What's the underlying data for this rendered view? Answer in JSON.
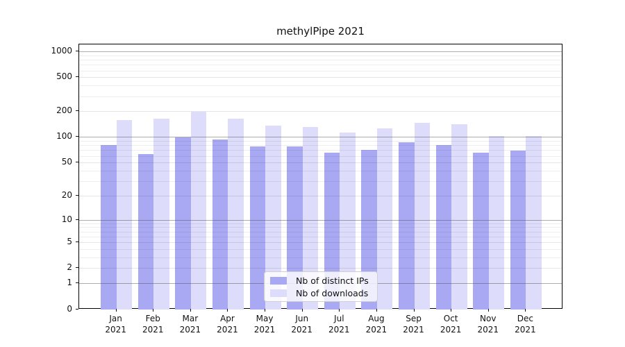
{
  "chart_data": {
    "type": "bar",
    "title": "methylPipe 2021",
    "categories": [
      "Jan\n2021",
      "Feb\n2021",
      "Mar\n2021",
      "Apr\n2021",
      "May\n2021",
      "Jun\n2021",
      "Jul\n2021",
      "Aug\n2021",
      "Sep\n2021",
      "Oct\n2021",
      "Nov\n2021",
      "Dec\n2021"
    ],
    "series": [
      {
        "name": "Nb of distinct IPs",
        "color": "#a9a9f3",
        "values": [
          80,
          63,
          99,
          93,
          77,
          77,
          66,
          70,
          87,
          80,
          66,
          69
        ]
      },
      {
        "name": "Nb of downloads",
        "color": "#dddcfa",
        "values": [
          157,
          165,
          198,
          165,
          135,
          131,
          112,
          127,
          148,
          142,
          102,
          103
        ]
      }
    ],
    "xlabel": "",
    "ylabel": "",
    "yscale": "log1p",
    "ylim": [
      0,
      1220
    ],
    "yticks": [
      0,
      1,
      2,
      5,
      10,
      20,
      50,
      100,
      200,
      500,
      1000
    ],
    "minor_gridlines": [
      3,
      4,
      6,
      7,
      8,
      9,
      30,
      40,
      60,
      70,
      80,
      90,
      300,
      400,
      600,
      700,
      800,
      900
    ],
    "grid": true,
    "legend_position": "bottom-center",
    "colors": {
      "background": "#ffffff",
      "frame": "#000000",
      "major_gridline": "#b0b0b0",
      "minor_gridline": "#ececec",
      "text": "#111111"
    }
  }
}
